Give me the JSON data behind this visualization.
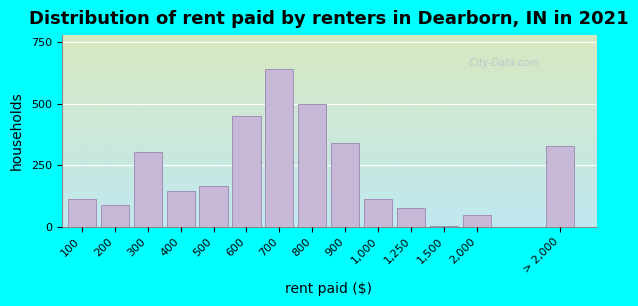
{
  "title": "Distribution of rent paid by renters in Dearborn, IN in 2021",
  "xlabel": "rent paid ($)",
  "ylabel": "households",
  "bar_color": "#c8b8d8",
  "bar_edge_color": "#a090b8",
  "background_color": "#00ffff",
  "plot_bg_gradient_top": "#d8e8c0",
  "plot_bg_gradient_bottom": "#c0e8f0",
  "categories": [
    "100",
    "200",
    "300",
    "400",
    "500",
    "600",
    "700",
    "800",
    "900",
    "1,000",
    "1,250",
    "1,500",
    "2,000",
    "> 2,000"
  ],
  "values": [
    115,
    90,
    305,
    145,
    165,
    450,
    640,
    500,
    340,
    115,
    75,
    5,
    50,
    330
  ],
  "yticks": [
    0,
    250,
    500,
    750
  ],
  "ylim": [
    0,
    780
  ],
  "title_fontsize": 13,
  "axis_label_fontsize": 10,
  "tick_fontsize": 8
}
